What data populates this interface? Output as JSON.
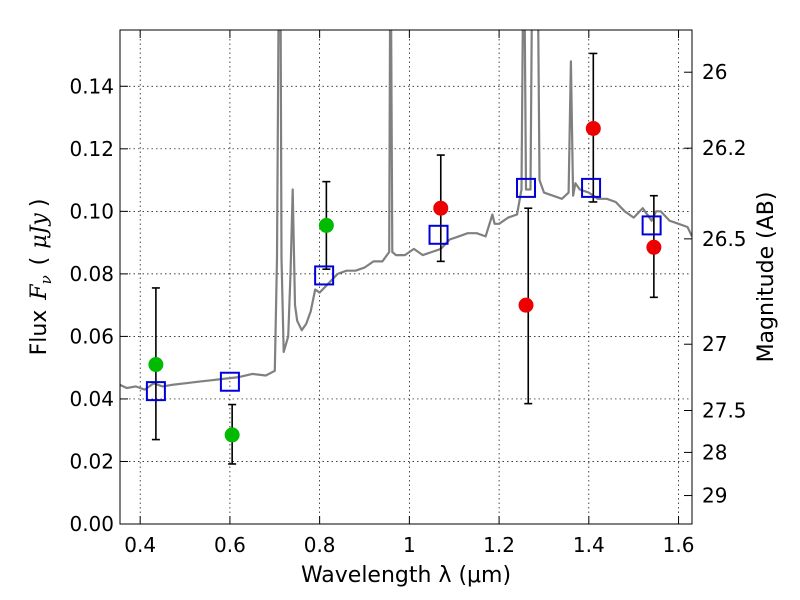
{
  "chart_data": {
    "type": "scatter",
    "title": "",
    "xlabel": "Wavelength  λ (μm)",
    "ylabel_parts": [
      "Flux",
      "F",
      "ν",
      "(",
      "μJy",
      ")"
    ],
    "y2label": "Magnitude (AB)",
    "xlim": [
      0.355,
      1.63
    ],
    "ylim": [
      0.0,
      0.158
    ],
    "grid": true,
    "x_ticks": [
      0.4,
      0.6,
      0.8,
      1.0,
      1.2,
      1.4,
      1.6
    ],
    "x_tick_labels": [
      "0.4",
      "0.6",
      "0.8",
      "1",
      "1.2",
      "1.4",
      "1.6"
    ],
    "y_ticks": [
      0.0,
      0.02,
      0.04,
      0.06,
      0.08,
      0.1,
      0.12,
      0.14
    ],
    "y_tick_labels": [
      "0.00",
      "0.02",
      "0.04",
      "0.06",
      "0.08",
      "0.10",
      "0.12",
      "0.14"
    ],
    "y2_ticks": [
      {
        "label": "26",
        "flux": 0.1445
      },
      {
        "label": "26.2",
        "flux": 0.1202
      },
      {
        "label": "26.5",
        "flux": 0.0912
      },
      {
        "label": "27",
        "flux": 0.0575
      },
      {
        "label": "27.5",
        "flux": 0.0363
      },
      {
        "label": "28",
        "flux": 0.0229
      },
      {
        "label": "29",
        "flux": 0.0091
      }
    ],
    "colors": {
      "green": "#00bb00",
      "red": "#ee0000",
      "blue": "#0000dd",
      "model": "#808080"
    },
    "series": [
      {
        "marker": "green-circle",
        "points": [
          {
            "x": 0.435,
            "y": 0.051
          },
          {
            "x": 0.605,
            "y": 0.0285
          },
          {
            "x": 0.815,
            "y": 0.0955
          }
        ]
      },
      {
        "marker": "red-circle",
        "points": [
          {
            "x": 1.07,
            "y": 0.101
          },
          {
            "x": 1.26,
            "y": 0.07
          },
          {
            "x": 1.41,
            "y": 0.1265
          },
          {
            "x": 1.545,
            "y": 0.0885
          }
        ]
      },
      {
        "marker": "blue-open-square",
        "points": [
          {
            "x": 0.435,
            "y": 0.0425
          },
          {
            "x": 0.6,
            "y": 0.0455
          },
          {
            "x": 0.81,
            "y": 0.0795
          },
          {
            "x": 1.065,
            "y": 0.0925
          },
          {
            "x": 1.26,
            "y": 0.1075
          },
          {
            "x": 1.405,
            "y": 0.1075
          },
          {
            "x": 1.54,
            "y": 0.0955
          }
        ]
      }
    ],
    "error_bars": [
      {
        "x": 0.435,
        "low": 0.027,
        "high": 0.0755
      },
      {
        "x": 0.605,
        "low": 0.0192,
        "high": 0.0382
      },
      {
        "x": 0.815,
        "low": 0.0815,
        "high": 0.1095
      },
      {
        "x": 1.07,
        "low": 0.084,
        "high": 0.118
      },
      {
        "x": 1.265,
        "low": 0.0385,
        "high": 0.101
      },
      {
        "x": 1.41,
        "low": 0.103,
        "high": 0.1505
      },
      {
        "x": 1.545,
        "low": 0.0725,
        "high": 0.105
      }
    ],
    "model_spectrum": {
      "x": [
        0.355,
        0.37,
        0.39,
        0.41,
        0.43,
        0.45,
        0.47,
        0.5,
        0.53,
        0.56,
        0.59,
        0.62,
        0.65,
        0.68,
        0.7,
        0.705,
        0.71,
        0.712,
        0.715,
        0.72,
        0.73,
        0.735,
        0.74,
        0.745,
        0.75,
        0.76,
        0.77,
        0.78,
        0.79,
        0.8,
        0.82,
        0.84,
        0.86,
        0.88,
        0.9,
        0.92,
        0.94,
        0.955,
        0.958,
        0.962,
        0.97,
        0.99,
        1.01,
        1.03,
        1.05,
        1.07,
        1.09,
        1.11,
        1.13,
        1.15,
        1.17,
        1.185,
        1.19,
        1.2,
        1.22,
        1.24,
        1.25,
        1.255,
        1.26,
        1.27,
        1.275,
        1.28,
        1.285,
        1.29,
        1.3,
        1.32,
        1.34,
        1.355,
        1.36,
        1.365,
        1.37,
        1.38,
        1.4,
        1.42,
        1.44,
        1.46,
        1.48,
        1.5,
        1.52,
        1.54,
        1.55,
        1.56,
        1.58,
        1.6,
        1.62,
        1.63
      ],
      "y": [
        0.0445,
        0.0435,
        0.044,
        0.043,
        0.045,
        0.044,
        0.0445,
        0.045,
        0.0455,
        0.046,
        0.0465,
        0.047,
        0.048,
        0.0475,
        0.049,
        0.085,
        0.2,
        0.2,
        0.085,
        0.055,
        0.06,
        0.08,
        0.107,
        0.07,
        0.065,
        0.062,
        0.064,
        0.068,
        0.075,
        0.074,
        0.077,
        0.08,
        0.081,
        0.081,
        0.082,
        0.084,
        0.084,
        0.087,
        0.2,
        0.087,
        0.086,
        0.086,
        0.088,
        0.086,
        0.087,
        0.088,
        0.091,
        0.092,
        0.093,
        0.093,
        0.092,
        0.099,
        0.096,
        0.096,
        0.098,
        0.099,
        0.107,
        0.2,
        0.107,
        0.107,
        0.2,
        0.2,
        0.2,
        0.11,
        0.106,
        0.105,
        0.104,
        0.106,
        0.148,
        0.105,
        0.109,
        0.107,
        0.106,
        0.104,
        0.104,
        0.103,
        0.1,
        0.098,
        0.101,
        0.097,
        0.1,
        0.1,
        0.097,
        0.096,
        0.095,
        0.092
      ]
    }
  }
}
